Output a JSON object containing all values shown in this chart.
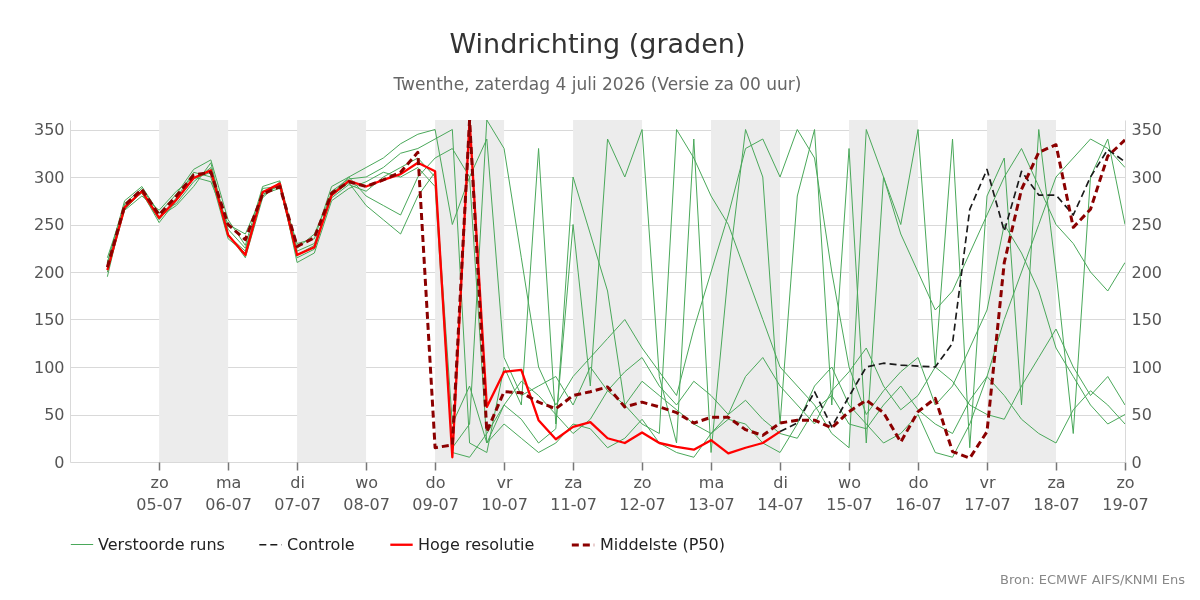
{
  "chart_data": {
    "type": "line",
    "title": "Windrichting (graden)",
    "subtitle": "Twenthe, zaterdag  4 juli 2026 (Versie za 00 uur)",
    "annotations": [
      "Bron: ECMWF AIFS/KNMI Ens"
    ],
    "x": [
      "2026-07-04T06:00",
      "2026-07-04T12:00",
      "2026-07-04T18:00",
      "2026-07-05T00:00",
      "2026-07-05T06:00",
      "2026-07-05T12:00",
      "2026-07-05T18:00",
      "2026-07-06T00:00",
      "2026-07-06T06:00",
      "2026-07-06T12:00",
      "2026-07-06T18:00",
      "2026-07-07T00:00",
      "2026-07-07T06:00",
      "2026-07-07T12:00",
      "2026-07-07T18:00",
      "2026-07-08T00:00",
      "2026-07-08T06:00",
      "2026-07-08T12:00",
      "2026-07-08T18:00",
      "2026-07-09T00:00",
      "2026-07-09T06:00",
      "2026-07-09T12:00",
      "2026-07-09T18:00",
      "2026-07-10T00:00",
      "2026-07-10T06:00",
      "2026-07-10T12:00",
      "2026-07-10T18:00",
      "2026-07-11T00:00",
      "2026-07-11T06:00",
      "2026-07-11T12:00",
      "2026-07-11T18:00",
      "2026-07-12T00:00",
      "2026-07-12T06:00",
      "2026-07-12T12:00",
      "2026-07-12T18:00",
      "2026-07-13T00:00",
      "2026-07-13T06:00",
      "2026-07-13T12:00",
      "2026-07-13T18:00",
      "2026-07-14T00:00",
      "2026-07-14T06:00",
      "2026-07-14T12:00",
      "2026-07-14T18:00",
      "2026-07-15T00:00",
      "2026-07-15T06:00",
      "2026-07-15T12:00",
      "2026-07-15T18:00",
      "2026-07-16T00:00",
      "2026-07-16T06:00",
      "2026-07-16T12:00",
      "2026-07-16T18:00",
      "2026-07-17T00:00",
      "2026-07-17T06:00",
      "2026-07-17T12:00",
      "2026-07-17T18:00",
      "2026-07-18T00:00",
      "2026-07-18T06:00",
      "2026-07-18T12:00",
      "2026-07-18T18:00",
      "2026-07-19T00:00"
    ],
    "xlim": [
      "2026-07-03T17:00",
      "2026-07-19T00:00"
    ],
    "xticks": [
      {
        "value": "2026-07-05",
        "label": "zo\n05-07"
      },
      {
        "value": "2026-07-06",
        "label": "ma\n06-07"
      },
      {
        "value": "2026-07-07",
        "label": "di\n07-07"
      },
      {
        "value": "2026-07-08",
        "label": "wo\n08-07"
      },
      {
        "value": "2026-07-09",
        "label": "do\n09-07"
      },
      {
        "value": "2026-07-10",
        "label": "vr\n10-07"
      },
      {
        "value": "2026-07-11",
        "label": "za\n11-07"
      },
      {
        "value": "2026-07-12",
        "label": "zo\n12-07"
      },
      {
        "value": "2026-07-13",
        "label": "ma\n13-07"
      },
      {
        "value": "2026-07-14",
        "label": "di\n14-07"
      },
      {
        "value": "2026-07-15",
        "label": "wo\n15-07"
      },
      {
        "value": "2026-07-16",
        "label": "do\n16-07"
      },
      {
        "value": "2026-07-17",
        "label": "vr\n17-07"
      },
      {
        "value": "2026-07-18",
        "label": "za\n18-07"
      },
      {
        "value": "2026-07-19",
        "label": "zo\n19-07"
      }
    ],
    "ylim": [
      0,
      360
    ],
    "yticks": [
      0,
      50,
      100,
      150,
      200,
      250,
      300,
      350
    ],
    "y2lim": [
      0,
      360
    ],
    "y2ticks": [
      0,
      50,
      100,
      150,
      200,
      250,
      300,
      350
    ],
    "grid": "y",
    "legend": "bottom",
    "marker": "none",
    "bands": [
      {
        "axis": "x",
        "from": "2026-07-05",
        "to": "2026-07-06",
        "color": "#ececec"
      },
      {
        "axis": "x",
        "from": "2026-07-07",
        "to": "2026-07-08",
        "color": "#ececec"
      },
      {
        "axis": "x",
        "from": "2026-07-09",
        "to": "2026-07-10",
        "color": "#ececec"
      },
      {
        "axis": "x",
        "from": "2026-07-11",
        "to": "2026-07-12",
        "color": "#ececec"
      },
      {
        "axis": "x",
        "from": "2026-07-13",
        "to": "2026-07-14",
        "color": "#ececec"
      },
      {
        "axis": "x",
        "from": "2026-07-15",
        "to": "2026-07-16",
        "color": "#ececec"
      },
      {
        "axis": "x",
        "from": "2026-07-17",
        "to": "2026-07-18",
        "color": "#ececec"
      }
    ],
    "series": [
      {
        "name": "Verstoorde runs",
        "color": "#4aa85a",
        "line_style": "solid",
        "values": [
          210,
          275,
          290,
          262,
          272,
          295,
          310,
          245,
          225,
          280,
          292,
          222,
          230,
          278,
          292,
          285,
          300,
          310,
          320,
          300,
          40,
          80,
          20,
          60,
          85,
          70,
          50,
          30,
          45,
          75,
          60,
          85,
          70,
          55,
          40,
          30,
          50,
          65,
          45,
          30,
          25,
          55,
          70,
          40,
          35,
          60,
          80,
          55,
          40,
          30,
          65,
          90,
          70,
          45,
          30,
          20,
          55,
          75,
          60,
          40
        ]
      },
      {
        "color": "#4aa85a",
        "line_style": "solid",
        "values": [
          215,
          270,
          283,
          255,
          278,
          305,
          300,
          235,
          220,
          288,
          290,
          215,
          224,
          285,
          298,
          300,
          310,
          325,
          330,
          340,
          350,
          20,
          10,
          100,
          60,
          330,
          40,
          250,
          80,
          340,
          300,
          350,
          90,
          20,
          340,
          10,
          200,
          350,
          300,
          40,
          280,
          350,
          60,
          330,
          20,
          300,
          250,
          350,
          100,
          340,
          15,
          280,
          320,
          60,
          350,
          200,
          30,
          300,
          340,
          250
        ]
      },
      {
        "color": "#4aa85a",
        "line_style": "solid",
        "values": [
          200,
          265,
          280,
          265,
          285,
          300,
          295,
          250,
          240,
          282,
          288,
          230,
          235,
          290,
          300,
          280,
          270,
          260,
          300,
          320,
          330,
          300,
          340,
          110,
          70,
          80,
          90,
          60,
          100,
          75,
          95,
          110,
          80,
          60,
          85,
          70,
          50,
          90,
          110,
          80,
          60,
          40,
          75,
          95,
          120,
          80,
          55,
          70,
          100,
          85,
          60,
          50,
          45,
          80,
          110,
          140,
          100,
          70,
          90,
          60
        ]
      },
      {
        "color": "#4aa85a",
        "line_style": "solid",
        "values": [
          205,
          268,
          286,
          258,
          270,
          290,
          315,
          240,
          215,
          278,
          295,
          210,
          220,
          275,
          288,
          295,
          305,
          300,
          310,
          290,
          10,
          5,
          30,
          60,
          45,
          20,
          35,
          300,
          240,
          180,
          60,
          40,
          30,
          350,
          320,
          280,
          250,
          200,
          150,
          100,
          80,
          60,
          30,
          15,
          350,
          300,
          240,
          200,
          160,
          180,
          220,
          260,
          300,
          330,
          290,
          250,
          230,
          200,
          180,
          210
        ]
      },
      {
        "color": "#4aa85a",
        "line_style": "solid",
        "values": [
          195,
          272,
          288,
          262,
          282,
          308,
          318,
          255,
          228,
          290,
          296,
          225,
          240,
          282,
          300,
          310,
          320,
          335,
          345,
          350,
          250,
          300,
          20,
          40,
          25,
          10,
          20,
          40,
          35,
          15,
          25,
          45,
          20,
          10,
          5,
          30,
          45,
          40,
          20,
          10,
          40,
          80,
          100,
          60,
          40,
          20,
          30,
          50,
          10,
          5,
          40,
          90,
          150,
          200,
          250,
          300,
          320,
          340,
          330,
          310
        ]
      },
      {
        "color": "#4aa85a",
        "line_style": "solid",
        "values": [
          210,
          266,
          284,
          252,
          275,
          298,
          305,
          238,
          222,
          285,
          290,
          218,
          228,
          280,
          294,
          270,
          255,
          240,
          280,
          305,
          15,
          40,
          360,
          330,
          215,
          100,
          60,
          90,
          110,
          130,
          150,
          120,
          95,
          70,
          140,
          200,
          260,
          330,
          340,
          300,
          350,
          320,
          200,
          100,
          50,
          75,
          95,
          110,
          60,
          80,
          120,
          160,
          250,
          220,
          180,
          120,
          90,
          60,
          40,
          50
        ]
      },
      {
        "name": "Controle",
        "color": "#1a1a1a",
        "line_style": "dashed",
        "values": [
          null,
          null,
          null,
          null,
          null,
          null,
          null,
          null,
          null,
          null,
          null,
          null,
          null,
          null,
          null,
          null,
          null,
          null,
          null,
          null,
          null,
          null,
          null,
          null,
          null,
          null,
          null,
          null,
          null,
          null,
          null,
          null,
          null,
          null,
          null,
          null,
          null,
          null,
          null,
          32,
          41,
          74,
          37,
          69,
          100,
          104,
          102,
          101,
          100,
          125,
          266,
          308,
          243,
          306,
          281,
          281,
          260,
          300,
          329,
          316
        ]
      },
      {
        "name": "Hoge resolutie",
        "color": "#ff0000",
        "line_style": "solid",
        "values": [
          202,
          268,
          285,
          257,
          276,
          299,
          307,
          239,
          218,
          284,
          293,
          218,
          226,
          281,
          296,
          290,
          297,
          303,
          315,
          306,
          5,
          360,
          58,
          95,
          97,
          44,
          24,
          37,
          42,
          25,
          20,
          31,
          20,
          16,
          13,
          23,
          9,
          15,
          20,
          32,
          null,
          null,
          null,
          null,
          null,
          null,
          null,
          null,
          null,
          null,
          null,
          null,
          null,
          null,
          null,
          null,
          null,
          null,
          null,
          null
        ]
      },
      {
        "name": "Middelste (P50)",
        "color": "#8b0000",
        "line_style": "dashed",
        "values": [
          205,
          270,
          287,
          260,
          280,
          302,
          305,
          250,
          234,
          282,
          290,
          227,
          236,
          283,
          295,
          290,
          297,
          305,
          326,
          15,
          18,
          360,
          32,
          74,
          73,
          63,
          56,
          70,
          74,
          79,
          58,
          63,
          58,
          52,
          41,
          47,
          47,
          34,
          28,
          41,
          44,
          44,
          36,
          53,
          65,
          52,
          21,
          53,
          67,
          11,
          4,
          32,
          210,
          287,
          326,
          334,
          247,
          266,
          322,
          339
        ]
      }
    ]
  }
}
